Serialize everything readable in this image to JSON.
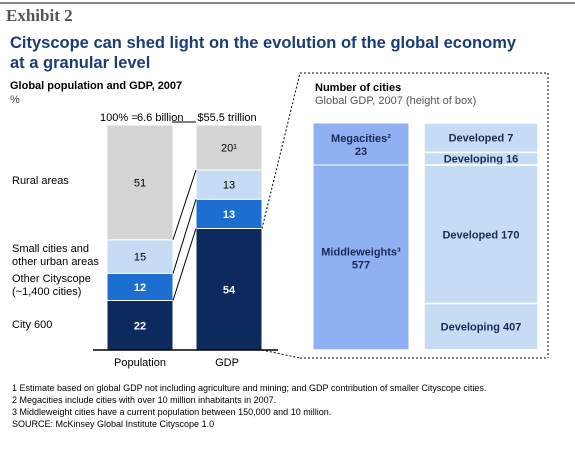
{
  "exhibit": "Exhibit 2",
  "title": "Cityscope can shed light on the evolution of the global economy at a granular level",
  "subtitle": "Global population and GDP, 2007",
  "unit": "%",
  "totals": {
    "prefix": "100% =",
    "population": "6.6 billion",
    "gdp": "$55.5 trillion"
  },
  "row_labels": {
    "rural": "Rural areas",
    "small1": "Small cities and",
    "small2": "other urban areas",
    "other1": "Other Cityscope",
    "other2": "(~1,400 cities)",
    "city600": "City 600"
  },
  "right_header": {
    "title": "Number of cities",
    "sub": "Global GDP, 2007 (height of box)"
  },
  "colors": {
    "rural": "#d4d4d4",
    "small": "#c5dcf4",
    "other": "#1c6fd0",
    "city600": "#0d2a5e",
    "group": "#8fb0f3",
    "sub": "#c5dcf4"
  },
  "chart_data": {
    "type": "bar",
    "stacked": true,
    "categories": [
      "Population",
      "GDP"
    ],
    "series": [
      {
        "name": "City 600",
        "values": [
          22,
          54
        ],
        "labels": [
          "22",
          "54"
        ]
      },
      {
        "name": "Other Cityscope (~1,400 cities)",
        "values": [
          12,
          13
        ],
        "labels": [
          "12",
          "13"
        ]
      },
      {
        "name": "Small cities and other urban areas",
        "values": [
          15,
          13
        ],
        "labels": [
          "15",
          "13"
        ]
      },
      {
        "name": "Rural areas",
        "values": [
          51,
          20
        ],
        "labels": [
          "51",
          "20¹"
        ]
      }
    ],
    "breakdown": {
      "groups": [
        {
          "name": "Megacities²",
          "count": "23",
          "value": 10
        },
        {
          "name": "Middleweights³",
          "count": "577",
          "value": 44
        }
      ],
      "subgroups": [
        {
          "label": "Developed 7",
          "value": 7
        },
        {
          "label": "Developing 16",
          "value": 3
        },
        {
          "label": "Developed 170",
          "value": 33
        },
        {
          "label": "Developing 407",
          "value": 11
        }
      ]
    }
  },
  "footnotes": [
    "1  Estimate based on global GDP not including agriculture and mining; and GDP contribution of smaller Cityscope cities.",
    "2  Megacities include cities with over 10 million inhabitants in 2007.",
    "3  Middleweight cities have a current population between 150,000 and 10 million.",
    "SOURCE: McKinsey Global Institute Cityscope 1.0"
  ]
}
